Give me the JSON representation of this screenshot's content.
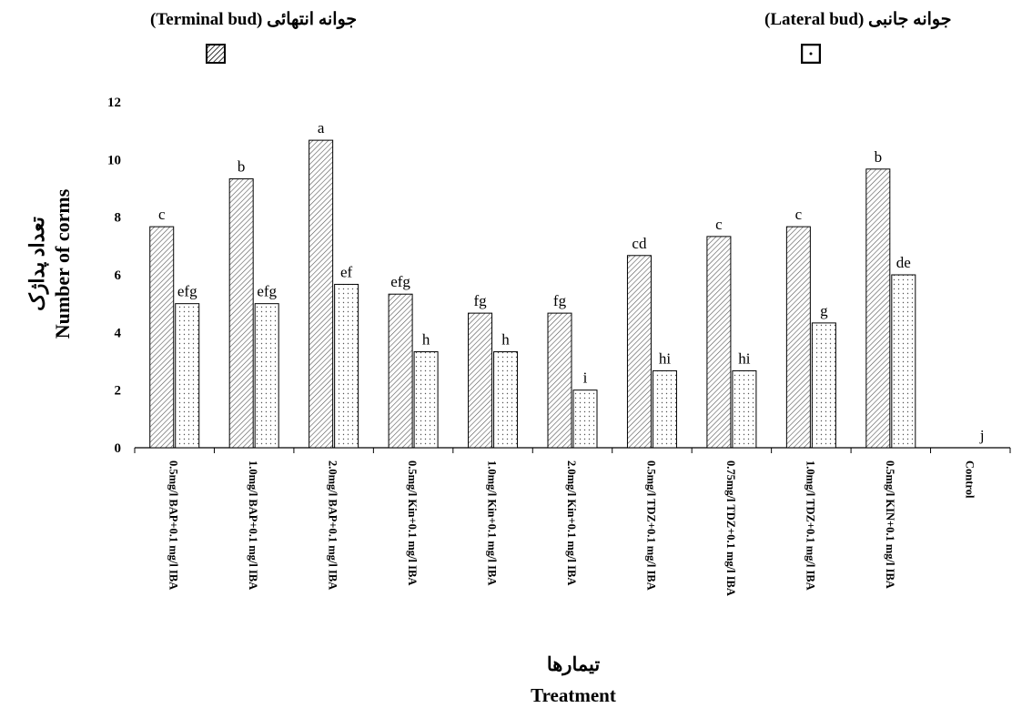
{
  "legend": {
    "terminal": {
      "label": "جوانه انتهائی (Terminal bud)",
      "pattern": "diagonal-hatch"
    },
    "lateral": {
      "label": "جوانه جانبی (Lateral bud)",
      "pattern": "dots"
    }
  },
  "chart_data": {
    "type": "bar",
    "title": "",
    "ylabel_fa": "تعداد پداژک",
    "ylabel": "Number of corms",
    "xlabel_fa": "تیمارها",
    "xlabel": "Treatment",
    "ylim": [
      0,
      12
    ],
    "yticks": [
      "0",
      "2",
      "4",
      "6",
      "8",
      "10",
      "12"
    ],
    "grid": false,
    "legend_position": "top",
    "categories": [
      "0.5mg/l BAP+0.1 mg/l IBA",
      "1.0mg/l BAP+0.1 mg/l IBA",
      "2.0mg/l BAP+0.1 mg/l IBA",
      "0.5mg/l Kin+0.1 mg/l IBA",
      "1.0mg/l Kin+0.1 mg/l IBA",
      "2.0mg/l Kin+0.1 mg/l IBA",
      "0.5mg/l TDZ+0.1 mg/l IBA",
      "0.75mg/l TDZ+0.1 mg/l IBA",
      "1.0mg/l TDZ+0.1 mg/l IBA",
      "0.5mg/l KIN+0.1 mg/l IBA",
      "Control"
    ],
    "series": [
      {
        "key": "terminal",
        "values": [
          7.67,
          9.33,
          10.67,
          5.33,
          4.67,
          4.67,
          6.67,
          7.33,
          7.67,
          9.67,
          0
        ],
        "letters": [
          "c",
          "b",
          "a",
          "efg",
          "fg",
          "fg",
          "cd",
          "c",
          "c",
          "b",
          "j"
        ]
      },
      {
        "key": "lateral",
        "values": [
          5.0,
          5.0,
          5.67,
          3.33,
          3.33,
          2.0,
          2.67,
          2.67,
          4.33,
          6.0,
          0
        ],
        "letters": [
          "efg",
          "efg",
          "ef",
          "h",
          "h",
          "i",
          "hi",
          "hi",
          "g",
          "de",
          ""
        ]
      }
    ]
  }
}
